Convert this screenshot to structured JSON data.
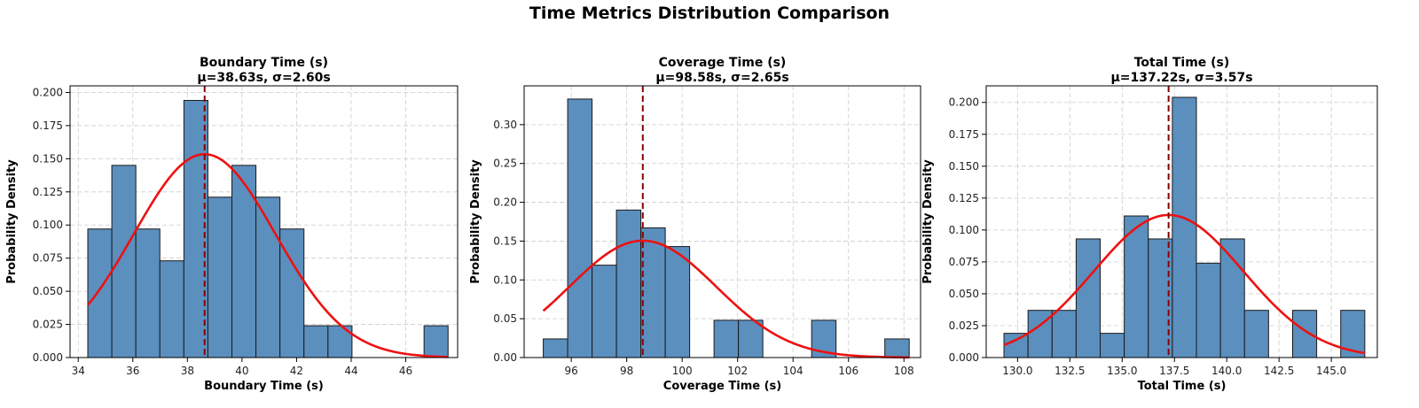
{
  "suptitle": "Time Metrics Distribution Comparison",
  "colors": {
    "bar_fill": "#5b8fbe",
    "bar_edge": "#1a1a1a",
    "curve": "#ee1111",
    "mean_line": "#8b0000",
    "grid": "#cccccc"
  },
  "chart_data": [
    {
      "type": "bar",
      "title": "Boundary Time (s)",
      "subtitle": "μ=38.63s, σ=2.60s",
      "xlabel": "Boundary Time (s)",
      "ylabel": "Probability Density",
      "xlim": [
        33.7,
        47.9
      ],
      "ylim": [
        0,
        0.205
      ],
      "xticks": [
        34,
        36,
        38,
        40,
        42,
        44,
        46
      ],
      "xtick_labels": [
        "34",
        "36",
        "38",
        "40",
        "42",
        "44",
        "46"
      ],
      "yticks": [
        0,
        0.025,
        0.05,
        0.075,
        0.1,
        0.125,
        0.15,
        0.175,
        0.2
      ],
      "ytick_labels": [
        "0.000",
        "0.025",
        "0.050",
        "0.075",
        "0.100",
        "0.125",
        "0.150",
        "0.175",
        "0.200"
      ],
      "bin_edges": [
        34.35,
        35.23,
        36.11,
        36.99,
        37.87,
        38.75,
        39.63,
        40.51,
        41.39,
        42.27,
        43.15,
        44.03,
        44.91,
        45.79,
        46.67,
        47.55
      ],
      "densities": [
        0.097,
        0.145,
        0.097,
        0.073,
        0.194,
        0.121,
        0.145,
        0.121,
        0.097,
        0.024,
        0.024,
        0,
        0,
        0,
        0.024
      ],
      "mean": 38.63,
      "std": 2.6,
      "grid": true
    },
    {
      "type": "bar",
      "title": "Coverage Time (s)",
      "subtitle": "μ=98.58s, σ=2.65s",
      "xlabel": "Coverage Time (s)",
      "ylabel": "Probability Density",
      "xlim": [
        94.3,
        108.6
      ],
      "ylim": [
        0,
        0.35
      ],
      "xticks": [
        96,
        98,
        100,
        102,
        104,
        106,
        108
      ],
      "xtick_labels": [
        "96",
        "98",
        "100",
        "102",
        "104",
        "106",
        "108"
      ],
      "yticks": [
        0,
        0.05,
        0.1,
        0.15,
        0.2,
        0.25,
        0.3
      ],
      "ytick_labels": [
        "0.00",
        "0.05",
        "0.10",
        "0.15",
        "0.20",
        "0.25",
        "0.30"
      ],
      "bin_edges": [
        94.99,
        95.87,
        96.75,
        97.63,
        98.51,
        99.39,
        100.27,
        101.15,
        102.03,
        102.91,
        103.79,
        104.67,
        105.55,
        106.43,
        107.31,
        108.19
      ],
      "densities": [
        0.024,
        0.333,
        0.119,
        0.19,
        0.167,
        0.143,
        0,
        0.048,
        0.048,
        0,
        0,
        0.048,
        0,
        0,
        0.024
      ],
      "mean": 98.58,
      "std": 2.65,
      "grid": true
    },
    {
      "type": "bar",
      "title": "Total Time (s)",
      "subtitle": "μ=137.22s, σ=3.57s",
      "xlabel": "Total Time (s)",
      "ylabel": "Probability Density",
      "xlim": [
        128.5,
        147.2
      ],
      "ylim": [
        0,
        0.213
      ],
      "xticks": [
        130,
        132.5,
        135,
        137.5,
        140,
        142.5,
        145
      ],
      "xtick_labels": [
        "130.0",
        "132.5",
        "135.0",
        "137.5",
        "140.0",
        "142.5",
        "145.0"
      ],
      "yticks": [
        0,
        0.025,
        0.05,
        0.075,
        0.1,
        0.125,
        0.15,
        0.175,
        0.2
      ],
      "ytick_labels": [
        "0.000",
        "0.025",
        "0.050",
        "0.075",
        "0.100",
        "0.125",
        "0.150",
        "0.175",
        "0.200"
      ],
      "bin_edges": [
        129.35,
        130.5,
        131.65,
        132.8,
        133.95,
        135.1,
        136.25,
        137.4,
        138.55,
        139.7,
        140.85,
        142.0,
        143.15,
        144.3,
        145.45,
        146.6
      ],
      "densities": [
        0.019,
        0.037,
        0.037,
        0.093,
        0.019,
        0.111,
        0.093,
        0.204,
        0.074,
        0.093,
        0.037,
        0,
        0.037,
        0,
        0.037
      ],
      "mean": 137.22,
      "std": 3.57,
      "grid": true
    }
  ]
}
